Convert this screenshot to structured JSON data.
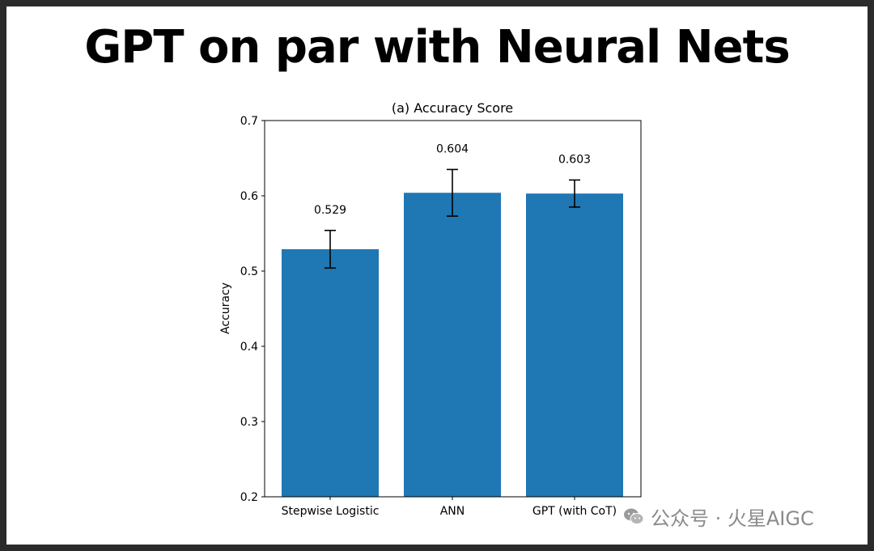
{
  "slide": {
    "title": "GPT on par with Neural Nets"
  },
  "chart_data": {
    "type": "bar",
    "title": "(a) Accuracy Score",
    "xlabel": "",
    "ylabel": "Accuracy",
    "ylim": [
      0.2,
      0.7
    ],
    "yticks": [
      0.2,
      0.3,
      0.4,
      0.5,
      0.6,
      0.7
    ],
    "categories": [
      "Stepwise Logistic",
      "ANN",
      "GPT (with CoT)"
    ],
    "values": [
      0.529,
      0.604,
      0.603
    ],
    "error_low": [
      0.504,
      0.573,
      0.585
    ],
    "error_high": [
      0.554,
      0.635,
      0.621
    ],
    "value_labels": [
      "0.529",
      "0.604",
      "0.603"
    ],
    "bar_color": "#1f77b4",
    "grid": false,
    "legend": "none"
  },
  "watermark": {
    "text": "公众号 · 火星AIGC",
    "icon": "wechat-icon"
  }
}
